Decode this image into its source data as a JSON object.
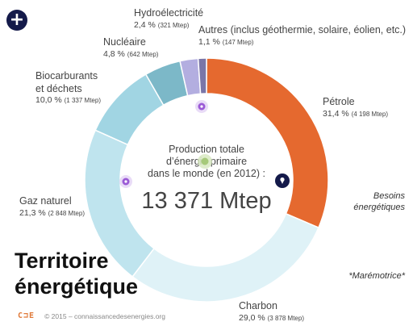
{
  "controls": {
    "add_glyph": "+"
  },
  "chart_data": {
    "type": "pie",
    "variant": "donut",
    "title_lines": [
      "Production totale",
      "d’énergie primaire",
      "dans le monde (en 2012) :"
    ],
    "total_label": "13 371 Mtep",
    "slices": [
      {
        "name": "Pétrole",
        "percent_label": "31,4 %",
        "mtep_label": "(4 198 Mtep)",
        "value": 31.4,
        "color": "#e5692f"
      },
      {
        "name": "Charbon",
        "percent_label": "29,0 %",
        "mtep_label": "(3 878 Mtep)",
        "value": 29.0,
        "color": "#dff2f7"
      },
      {
        "name": "Gaz naturel",
        "percent_label": "21,3 %",
        "mtep_label": "(2 848 Mtep)",
        "value": 21.3,
        "color": "#bfe4ee"
      },
      {
        "name": "Biocarburants et déchets",
        "name_lines": [
          "Biocarburants",
          "et déchets"
        ],
        "percent_label": "10,0 %",
        "mtep_label": "(1 337 Mtep)",
        "value": 10.0,
        "color": "#a1d5e3"
      },
      {
        "name": "Nucléaire",
        "percent_label": "4,8 %",
        "mtep_label": "(642 Mtep)",
        "value": 4.8,
        "color": "#7cb8c8"
      },
      {
        "name": "Hydroélectricité",
        "percent_label": "2,4 %",
        "mtep_label": "(321 Mtep)",
        "value": 2.4,
        "color": "#b3aee0"
      },
      {
        "name": "Autres (inclus géothermie, solaire, éolien, etc.)",
        "percent_label": "1,1 %",
        "mtep_label": "(147 Mtep)",
        "value": 1.1,
        "color": "#7a76a8"
      }
    ]
  },
  "side_notes": {
    "besoins_line1": "Besoins",
    "besoins_line2": "énergétiques",
    "maremotrice": "*Marémotrice*"
  },
  "brand": {
    "title_line1": "Territoire",
    "title_line2": "énergétique",
    "logo_text": "C⊐E",
    "footer": "© 2015 – connaissancedesenergies.org"
  },
  "colors": {
    "accent_orange": "#e5692f",
    "navy": "#141a4a",
    "purple_marker": "#9b5ad6",
    "green_marker": "#a6c97a"
  },
  "icons": {
    "add": "plus-icon",
    "marker": "info-dot-icon",
    "pin": "pin-icon"
  }
}
